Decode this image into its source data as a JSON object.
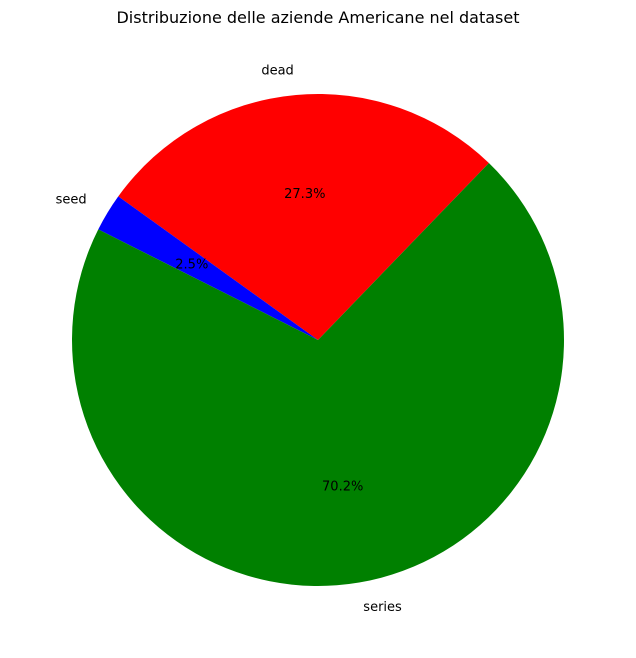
{
  "chart_data": {
    "type": "pie",
    "title": "Distribuzione delle aziende Americane nel dataset",
    "categories": [
      "dead",
      "seed",
      "series"
    ],
    "values": [
      27.3,
      2.5,
      70.2
    ],
    "percent_labels": [
      "27.3%",
      "2.5%",
      "70.2%"
    ],
    "colors": [
      "#ff0000",
      "#0000ff",
      "#008000"
    ],
    "start_angle_deg": 46,
    "direction": "counterclockwise",
    "legend": "none"
  }
}
